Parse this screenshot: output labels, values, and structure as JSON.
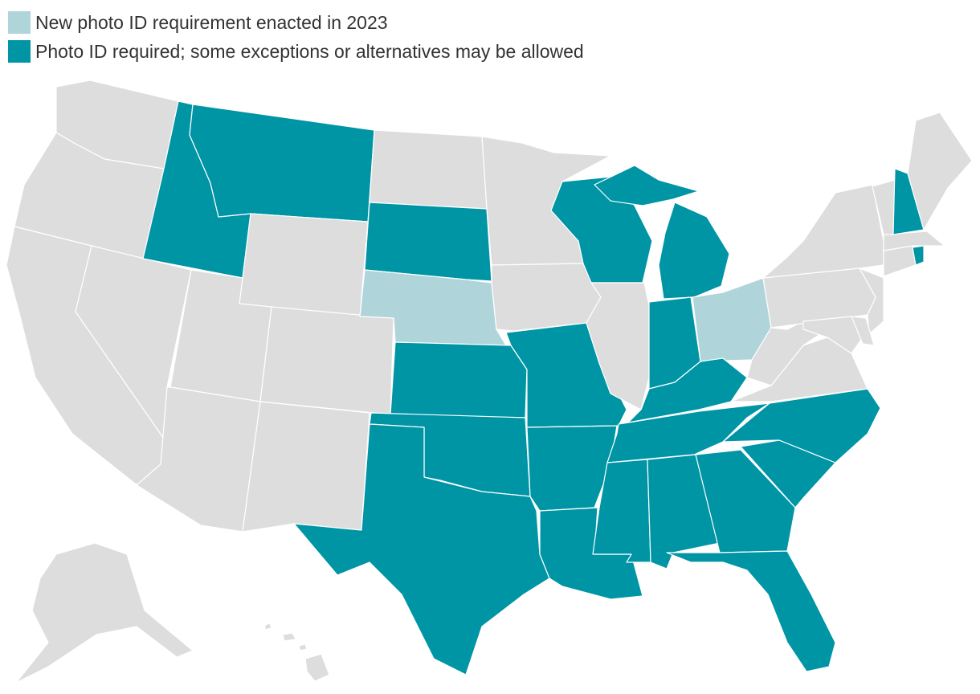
{
  "legend": [
    {
      "label": "New photo ID requirement enacted in 2023",
      "category": "new2023",
      "color": "#afd5da"
    },
    {
      "label": "Photo ID required; some exceptions or alternatives may be allowed",
      "category": "photo",
      "color": "#0095a5"
    }
  ],
  "colors": {
    "none": "#dddddd",
    "new2023": "#afd5da",
    "photo": "#0095a5",
    "border": "#ffffff"
  },
  "states": [
    {
      "code": "WA",
      "category": "none"
    },
    {
      "code": "OR",
      "category": "none"
    },
    {
      "code": "CA",
      "category": "none"
    },
    {
      "code": "NV",
      "category": "none"
    },
    {
      "code": "ID",
      "category": "photo"
    },
    {
      "code": "MT",
      "category": "photo"
    },
    {
      "code": "WY",
      "category": "none"
    },
    {
      "code": "UT",
      "category": "none"
    },
    {
      "code": "AZ",
      "category": "none"
    },
    {
      "code": "CO",
      "category": "none"
    },
    {
      "code": "NM",
      "category": "none"
    },
    {
      "code": "ND",
      "category": "none"
    },
    {
      "code": "SD",
      "category": "photo"
    },
    {
      "code": "NE",
      "category": "new2023"
    },
    {
      "code": "KS",
      "category": "photo"
    },
    {
      "code": "OK",
      "category": "photo"
    },
    {
      "code": "TX",
      "category": "photo"
    },
    {
      "code": "MN",
      "category": "none"
    },
    {
      "code": "IA",
      "category": "none"
    },
    {
      "code": "MO",
      "category": "photo"
    },
    {
      "code": "AR",
      "category": "photo"
    },
    {
      "code": "LA",
      "category": "photo"
    },
    {
      "code": "WI",
      "category": "photo"
    },
    {
      "code": "IL",
      "category": "none"
    },
    {
      "code": "MI",
      "category": "photo"
    },
    {
      "code": "IN",
      "category": "photo"
    },
    {
      "code": "OH",
      "category": "new2023"
    },
    {
      "code": "KY",
      "category": "photo"
    },
    {
      "code": "TN",
      "category": "photo"
    },
    {
      "code": "MS",
      "category": "photo"
    },
    {
      "code": "AL",
      "category": "photo"
    },
    {
      "code": "GA",
      "category": "photo"
    },
    {
      "code": "FL",
      "category": "photo"
    },
    {
      "code": "SC",
      "category": "photo"
    },
    {
      "code": "NC",
      "category": "photo"
    },
    {
      "code": "VA",
      "category": "none"
    },
    {
      "code": "WV",
      "category": "none"
    },
    {
      "code": "PA",
      "category": "none"
    },
    {
      "code": "NY",
      "category": "none"
    },
    {
      "code": "NJ",
      "category": "none"
    },
    {
      "code": "DE",
      "category": "none"
    },
    {
      "code": "MD",
      "category": "none"
    },
    {
      "code": "CT",
      "category": "none"
    },
    {
      "code": "RI",
      "category": "photo"
    },
    {
      "code": "MA",
      "category": "none"
    },
    {
      "code": "VT",
      "category": "none"
    },
    {
      "code": "NH",
      "category": "photo"
    },
    {
      "code": "ME",
      "category": "none"
    },
    {
      "code": "AK",
      "category": "none"
    },
    {
      "code": "HI",
      "category": "none"
    }
  ]
}
